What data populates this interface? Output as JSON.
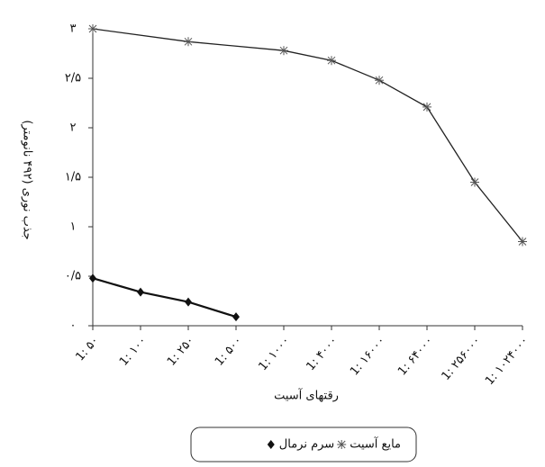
{
  "chart_data": {
    "type": "line",
    "y_label": "جذب نوری (۴۹۲ نانومتر)",
    "x_label": "رقتهای آسیت",
    "categories": [
      "1: ۵۰",
      "1: ۱۰۰",
      "1: ۲۵۰",
      "1: ۵۰۰",
      "1: ۱۰۰۰",
      "1: ۴۰۰۰",
      "1: ۱۶۰۰۰",
      "1: ۶۴۰۰۰",
      "1: ۲۵۶۰۰۰",
      "1: ۱۰۲۴۰۰۰"
    ],
    "series": [
      {
        "name": "مایع آسیت",
        "color": "#222222",
        "marker": "star",
        "values": [
          3.0,
          null,
          2.87,
          null,
          2.78,
          2.68,
          2.48,
          2.21,
          1.45,
          0.85
        ]
      },
      {
        "name": "سرم نرمال",
        "color": "#111111",
        "marker": "diamond",
        "values": [
          0.48,
          0.34,
          0.24,
          0.09,
          null,
          null,
          null,
          null,
          null,
          null
        ]
      }
    ],
    "span_gaps": true,
    "ylim": [
      0,
      3
    ],
    "yticks": [
      {
        "value": 0,
        "label": "۰"
      },
      {
        "value": 0.5,
        "label": "۰/۵"
      },
      {
        "value": 1,
        "label": "۱"
      },
      {
        "value": 1.5,
        "label": "۱/۵"
      },
      {
        "value": 2,
        "label": "۲"
      },
      {
        "value": 2.5,
        "label": "۲/۵"
      },
      {
        "value": 3,
        "label": "۳"
      }
    ],
    "grid": false
  }
}
